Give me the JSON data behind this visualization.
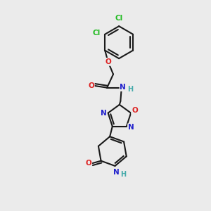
{
  "bg_color": "#ebebeb",
  "bond_color": "#1a1a1a",
  "atom_colors": {
    "Cl": "#22bb22",
    "O": "#dd2222",
    "N": "#2222cc",
    "H": "#44aaaa",
    "C": "#1a1a1a"
  }
}
